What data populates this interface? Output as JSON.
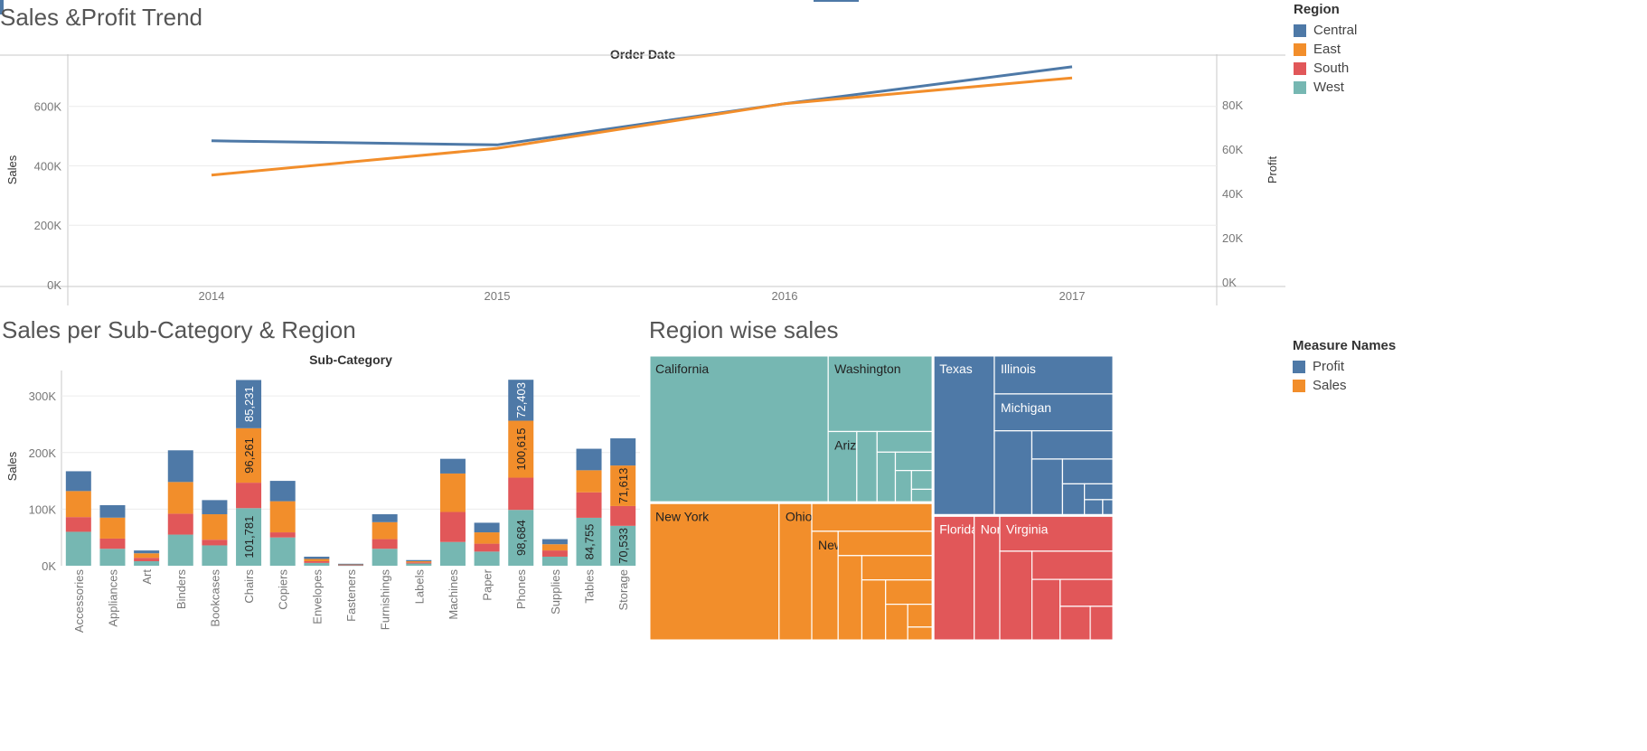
{
  "colors": {
    "Central": "#4e79a7",
    "East": "#f28e2b",
    "South": "#e15759",
    "West": "#76b7b2",
    "Profit": "#4e79a7",
    "Sales": "#f28e2b",
    "grid": "#ececec",
    "axis": "#c8c8c8",
    "tick": "#777777"
  },
  "legend_region": {
    "title": "Region",
    "items": [
      {
        "label": "Central",
        "color": "#4e79a7"
      },
      {
        "label": "East",
        "color": "#f28e2b"
      },
      {
        "label": "South",
        "color": "#e15759"
      },
      {
        "label": "West",
        "color": "#76b7b2"
      }
    ]
  },
  "legend_measure": {
    "title": "Measure Names",
    "items": [
      {
        "label": "Profit",
        "color": "#4e79a7"
      },
      {
        "label": "Sales",
        "color": "#f28e2b"
      }
    ]
  },
  "chart_data": [
    {
      "type": "line",
      "title": "Sales &Profit Trend",
      "top_label": "Order Date",
      "ylabel": "Sales",
      "y2label": "Profit",
      "x": [
        "2014",
        "2015",
        "2016",
        "2017"
      ],
      "ylim": [
        0,
        730000
      ],
      "y2lim": [
        0,
        98000
      ],
      "yticks": [
        {
          "v": 0,
          "t": "0K"
        },
        {
          "v": 200000,
          "t": "200K"
        },
        {
          "v": 400000,
          "t": "400K"
        },
        {
          "v": 600000,
          "t": "600K"
        }
      ],
      "y2ticks": [
        {
          "v": 0,
          "t": "0K"
        },
        {
          "v": 20000,
          "t": "20K"
        },
        {
          "v": 40000,
          "t": "40K"
        },
        {
          "v": 60000,
          "t": "60K"
        },
        {
          "v": 80000,
          "t": "80K"
        }
      ],
      "series": [
        {
          "measure": "Sales",
          "axis": "left",
          "color": "#4e79a7",
          "values": [
            484247,
            470533,
            609206,
            733215
          ]
        },
        {
          "measure": "Profit",
          "axis": "right",
          "color": "#f28e2b",
          "values": [
            49544,
            61619,
            81795,
            93439
          ]
        }
      ]
    },
    {
      "type": "bar",
      "stacked": true,
      "title": "Sales per Sub-Category & Region",
      "top_label": "Sub-Category",
      "ylabel": "Sales",
      "ylim": [
        0,
        345000
      ],
      "yticks": [
        {
          "v": 0,
          "t": "0K"
        },
        {
          "v": 100000,
          "t": "100K"
        },
        {
          "v": 200000,
          "t": "200K"
        },
        {
          "v": 300000,
          "t": "300K"
        }
      ],
      "categories": [
        "Accessories",
        "Appliances",
        "Art",
        "Binders",
        "Bookcases",
        "Chairs",
        "Copiers",
        "Envelopes",
        "Fasteners",
        "Furnishings",
        "Labels",
        "Machines",
        "Paper",
        "Phones",
        "Supplies",
        "Tables",
        "Storage"
      ],
      "series": [
        {
          "name": "West",
          "color": "#76b7b2",
          "values": [
            60000,
            30000,
            8000,
            55000,
            36000,
            101781,
            50000,
            5000,
            1000,
            30000,
            4000,
            42000,
            25000,
            98684,
            16000,
            84755,
            70533
          ]
        },
        {
          "name": "South",
          "color": "#e15759",
          "values": [
            26000,
            18000,
            6000,
            37000,
            10000,
            45000,
            9000,
            3000,
            1000,
            17000,
            2000,
            53000,
            14000,
            57000,
            11000,
            45000,
            35000
          ]
        },
        {
          "name": "East",
          "color": "#f28e2b",
          "values": [
            46000,
            37000,
            8000,
            56000,
            45000,
            96261,
            55000,
            4000,
            1000,
            30000,
            2000,
            68000,
            20000,
            100615,
            11000,
            39000,
            71613
          ]
        },
        {
          "name": "Central",
          "color": "#4e79a7",
          "values": [
            35000,
            22000,
            5000,
            56000,
            25000,
            85231,
            36000,
            4000,
            500,
            14000,
            2000,
            26000,
            17000,
            72403,
            9000,
            38000,
            48000
          ]
        }
      ],
      "labels": [
        {
          "cat": "Chairs",
          "series": "West",
          "text": "101,781"
        },
        {
          "cat": "Chairs",
          "series": "East",
          "text": "96,261"
        },
        {
          "cat": "Chairs",
          "series": "Central",
          "text": "85,231"
        },
        {
          "cat": "Phones",
          "series": "West",
          "text": "98,684"
        },
        {
          "cat": "Phones",
          "series": "East",
          "text": "100,615"
        },
        {
          "cat": "Phones",
          "series": "Central",
          "text": "72,403"
        },
        {
          "cat": "Tables",
          "series": "West",
          "text": "84,755"
        },
        {
          "cat": "Storage",
          "series": "West",
          "text": "70,533"
        },
        {
          "cat": "Storage",
          "series": "East",
          "text": "71,613"
        }
      ]
    },
    {
      "type": "treemap",
      "title": "Region wise sales",
      "groups": [
        {
          "region": "West",
          "color": "#76b7b2",
          "value": 725458,
          "states": [
            {
              "name": "California",
              "value": 457688
            },
            {
              "name": "Washington",
              "value": 138641
            },
            {
              "name": "Arizona",
              "value": 35282
            },
            {
              "name": "",
              "value": 25000
            },
            {
              "name": "",
              "value": 20000
            },
            {
              "name": "",
              "value": 16000
            },
            {
              "name": "",
              "value": 12000
            },
            {
              "name": "",
              "value": 9000
            },
            {
              "name": "",
              "value": 7000
            },
            {
              "name": "",
              "value": 5000
            }
          ]
        },
        {
          "region": "East",
          "color": "#f28e2b",
          "value": 678781,
          "states": [
            {
              "name": "New York",
              "value": 310876
            },
            {
              "name": "Ohio",
              "value": 78258
            },
            {
              "name": "",
              "value": 60000
            },
            {
              "name": "New",
              "value": 50000
            },
            {
              "name": "",
              "value": 40000
            },
            {
              "name": "",
              "value": 35000
            },
            {
              "name": "",
              "value": 30000
            },
            {
              "name": "",
              "value": 25000
            },
            {
              "name": "",
              "value": 20000
            },
            {
              "name": "",
              "value": 14000
            },
            {
              "name": "",
              "value": 10000
            },
            {
              "name": "",
              "value": 6000
            }
          ]
        },
        {
          "region": "Central",
          "color": "#4e79a7",
          "value": 501240,
          "states": [
            {
              "name": "Texas",
              "value": 170188
            },
            {
              "name": "Illinois",
              "value": 80166
            },
            {
              "name": "Michigan",
              "value": 76270
            },
            {
              "name": "",
              "value": 55000
            },
            {
              "name": "",
              "value": 40000
            },
            {
              "name": "",
              "value": 30000
            },
            {
              "name": "",
              "value": 22000
            },
            {
              "name": "",
              "value": 12000
            },
            {
              "name": "",
              "value": 8000
            },
            {
              "name": "",
              "value": 5000
            },
            {
              "name": "",
              "value": 3000
            }
          ]
        },
        {
          "region": "South",
          "color": "#e15759",
          "value": 391722,
          "states": [
            {
              "name": "Florida",
              "value": 89474
            },
            {
              "name": "North",
              "value": 55603
            },
            {
              "name": "Virginia",
              "value": 70637
            },
            {
              "name": "",
              "value": 50000
            },
            {
              "name": "",
              "value": 40000
            },
            {
              "name": "",
              "value": 30000
            },
            {
              "name": "",
              "value": 25000
            },
            {
              "name": "",
              "value": 18000
            },
            {
              "name": "",
              "value": 14000
            }
          ]
        }
      ]
    }
  ]
}
